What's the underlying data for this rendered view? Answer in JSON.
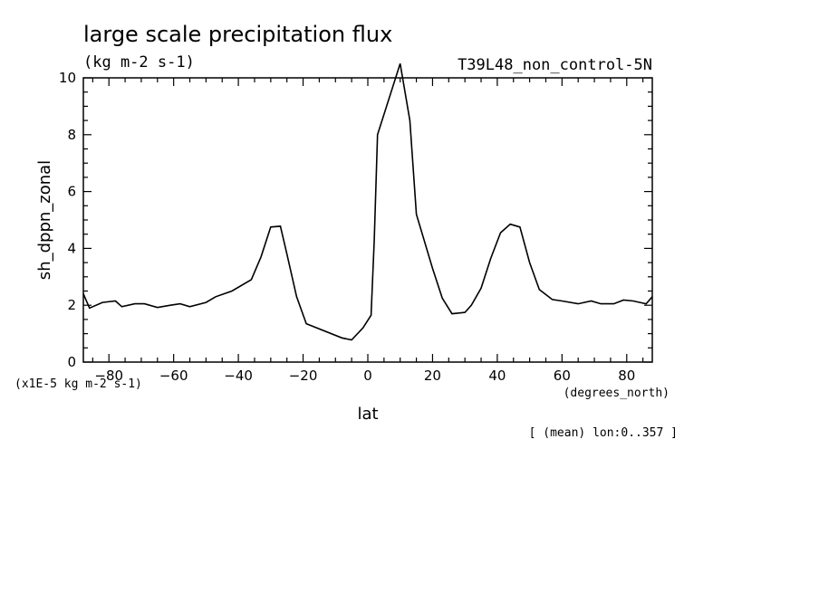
{
  "chart_data": {
    "type": "line",
    "title": "large scale precipitation flux",
    "units_label": "(kg m-2 s-1)",
    "experiment_label": "T39L48_non_control-5N",
    "xlabel": "lat",
    "ylabel": "sh_dppn_zonal",
    "x_unit_label": "(degrees_north)",
    "y_scale_label": "(x1E-5 kg m-2 s-1)",
    "average_label": "[ (mean) lon:0..357 ]",
    "xlim": [
      -87.9,
      87.9
    ],
    "ylim": [
      0,
      10
    ],
    "xticks": [
      -80,
      -60,
      -40,
      -20,
      0,
      20,
      40,
      60,
      80
    ],
    "yticks": [
      0,
      2,
      4,
      6,
      8,
      10
    ],
    "grid": false,
    "x": [
      -87.9,
      -86,
      -82,
      -78,
      -76,
      -72,
      -69,
      -65,
      -61,
      -58,
      -55,
      -50,
      -47,
      -42,
      -36,
      -33,
      -30,
      -27,
      -25,
      -22,
      -19,
      -8,
      -5,
      -1.5,
      1,
      2,
      3,
      10,
      13,
      15,
      20,
      23,
      26,
      30,
      32,
      35,
      38,
      41,
      44,
      47,
      50,
      53,
      57,
      60,
      65,
      69,
      72,
      76,
      79,
      82,
      86,
      87.9
    ],
    "y": [
      2.4,
      1.9,
      2.1,
      2.15,
      1.95,
      2.05,
      2.05,
      1.92,
      2.0,
      2.05,
      1.95,
      2.1,
      2.3,
      2.5,
      2.9,
      3.7,
      4.75,
      4.78,
      3.8,
      2.3,
      1.35,
      0.85,
      0.78,
      1.2,
      1.65,
      4.3,
      8.0,
      10.5,
      8.5,
      5.2,
      3.3,
      2.25,
      1.7,
      1.75,
      2.0,
      2.6,
      3.65,
      4.55,
      4.85,
      4.75,
      3.5,
      2.55,
      2.2,
      2.15,
      2.05,
      2.15,
      2.05,
      2.05,
      2.18,
      2.15,
      2.05,
      2.3
    ]
  }
}
